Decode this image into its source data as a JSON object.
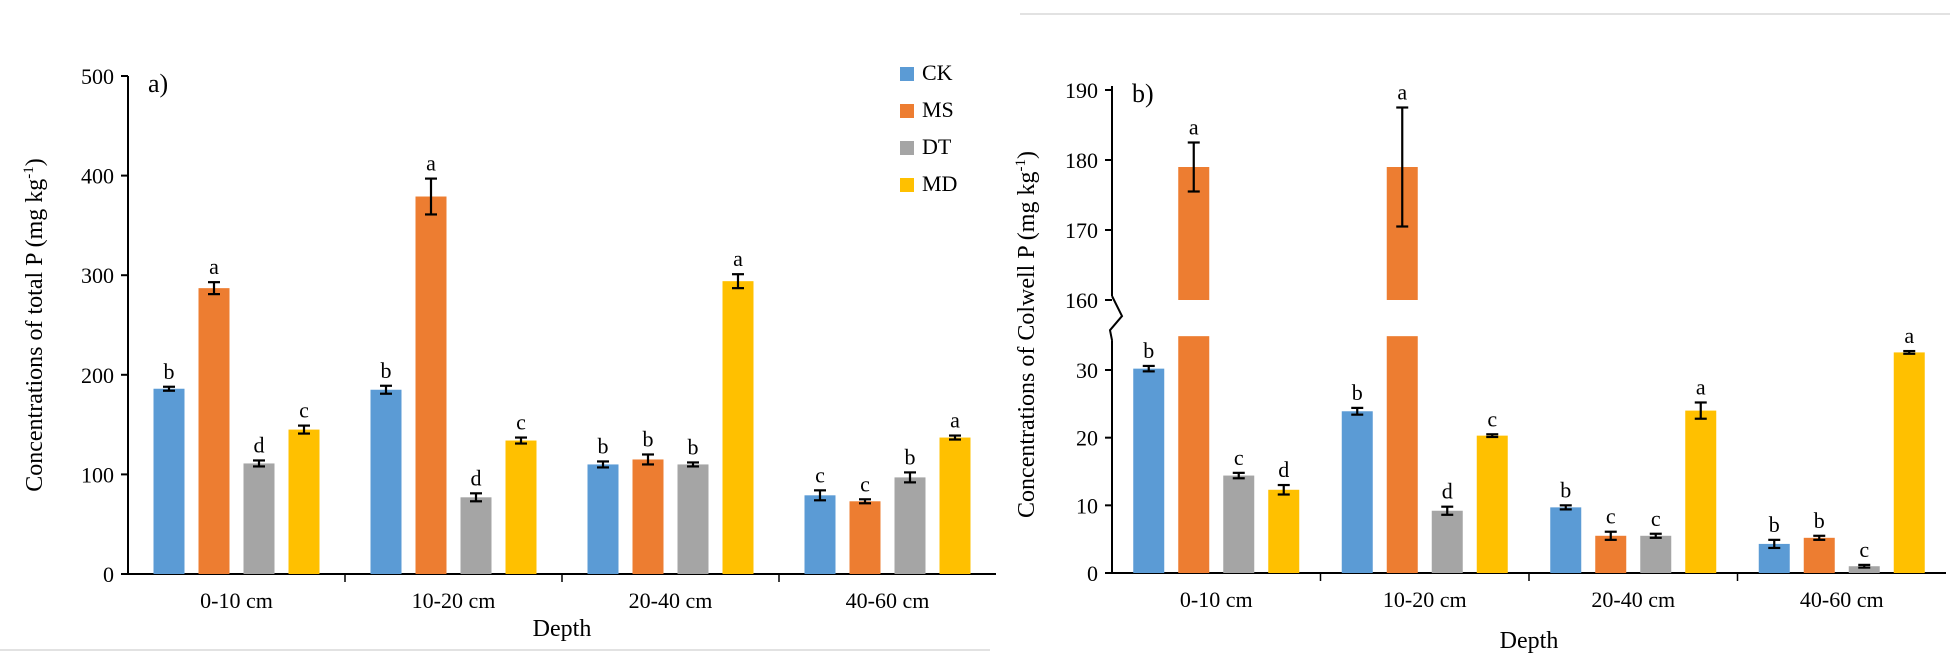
{
  "colors": {
    "CK": "#5B9BD5",
    "MS": "#ED7D31",
    "DT": "#A5A5A5",
    "MD": "#FFC000"
  },
  "legend": [
    "CK",
    "MS",
    "DT",
    "MD"
  ],
  "chart_data": [
    {
      "type": "bar",
      "panel_label": "a)",
      "xlabel": "Depth",
      "ylabel": "Concentrations of total P (mg kg-1)",
      "ylim": [
        0,
        500
      ],
      "yticks": [
        0,
        100,
        200,
        300,
        400,
        500
      ],
      "categories": [
        "0-10 cm",
        "10-20 cm",
        "20-40 cm",
        "40-60 cm"
      ],
      "series": [
        {
          "name": "CK",
          "values": [
            186,
            185,
            110,
            79
          ],
          "errors": [
            2,
            4,
            3,
            5
          ],
          "letters": [
            "b",
            "b",
            "b",
            "c"
          ]
        },
        {
          "name": "MS",
          "values": [
            287,
            379,
            115,
            73
          ],
          "errors": [
            6,
            18,
            5,
            2
          ],
          "letters": [
            "a",
            "a",
            "b",
            "c"
          ]
        },
        {
          "name": "DT",
          "values": [
            111,
            77,
            110,
            97
          ],
          "errors": [
            3,
            4,
            2,
            5
          ],
          "letters": [
            "d",
            "d",
            "b",
            "b"
          ]
        },
        {
          "name": "MD",
          "values": [
            145,
            134,
            294,
            137
          ],
          "errors": [
            4,
            3,
            7,
            2
          ],
          "letters": [
            "c",
            "c",
            "a",
            "a"
          ]
        }
      ],
      "legend_position": "top-right"
    },
    {
      "type": "bar",
      "panel_label": "b)",
      "xlabel": "Depth",
      "ylabel": "Concentrations of Colwell P (mg kg-1)",
      "axis_break": {
        "lower": [
          0,
          35
        ],
        "upper": [
          160,
          190
        ]
      },
      "yticks": [
        0,
        10,
        20,
        30,
        160,
        170,
        180,
        190
      ],
      "categories": [
        "0-10 cm",
        "10-20 cm",
        "20-40 cm",
        "40-60 cm"
      ],
      "series": [
        {
          "name": "CK",
          "values": [
            30.2,
            23.9,
            9.7,
            4.3
          ],
          "errors": [
            0.4,
            0.5,
            0.3,
            0.6
          ],
          "letters": [
            "b",
            "b",
            "b",
            "b"
          ]
        },
        {
          "name": "MS",
          "values": [
            179,
            179,
            5.5,
            5.2
          ],
          "errors": [
            3.5,
            8.5,
            0.6,
            0.3
          ],
          "letters": [
            "a",
            "a",
            "c",
            "b"
          ]
        },
        {
          "name": "DT",
          "values": [
            14.4,
            9.2,
            5.5,
            1.0
          ],
          "errors": [
            0.4,
            0.6,
            0.3,
            0.2
          ],
          "letters": [
            "c",
            "d",
            "c",
            "c"
          ]
        },
        {
          "name": "MD",
          "values": [
            12.3,
            20.3,
            24.0,
            32.6
          ],
          "errors": [
            0.7,
            0.2,
            1.2,
            0.2
          ],
          "letters": [
            "d",
            "c",
            "a",
            "a"
          ]
        }
      ]
    }
  ]
}
